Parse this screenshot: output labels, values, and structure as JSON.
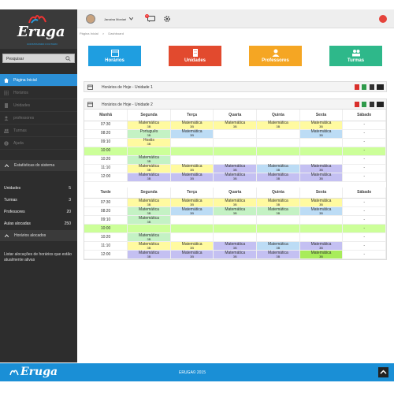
{
  "app": {
    "logo_text": "Eruga",
    "logo_sub": "CONSTRUINDO O FUTURO"
  },
  "sidebar": {
    "search_placeholder": "Pesquisar",
    "nav": [
      {
        "label": "Página Inicial",
        "icon": "home-icon",
        "active": true
      },
      {
        "label": "Horários",
        "icon": "grid-icon",
        "active": false
      },
      {
        "label": "Unidades",
        "icon": "building-icon",
        "active": false
      },
      {
        "label": "professores",
        "icon": "user-icon",
        "active": false
      },
      {
        "label": "Turmas",
        "icon": "group-icon",
        "active": false
      },
      {
        "label": "Ajuda",
        "icon": "info-icon",
        "active": false
      }
    ],
    "stats_title": "Estatísticas do sistema",
    "stats": [
      {
        "label": "Unidades",
        "value": "5"
      },
      {
        "label": "Turmas",
        "value": "3"
      },
      {
        "label": "Professores",
        "value": "20"
      },
      {
        "label": "Aulas alocadas",
        "value": "250"
      }
    ],
    "sched_title": "Horários alocados",
    "sched_text": "Listar alocações de horários que estão atualmente ativas"
  },
  "topbar": {
    "username": "Janaina Moniari",
    "msg_count": "3"
  },
  "breadcrumb": [
    "Página Inicial",
    ">",
    "Dashboard"
  ],
  "tiles": [
    {
      "label": "Horários",
      "color": "#1f9ee0",
      "icon": "calendar-icon"
    },
    {
      "label": "Unidades",
      "color": "#e24a2e",
      "icon": "building-icon"
    },
    {
      "label": "Professores",
      "color": "#f5a623",
      "icon": "user-icon"
    },
    {
      "label": "Turmas",
      "color": "#2eb88a",
      "icon": "group-icon"
    }
  ],
  "panels": {
    "unit1_title": "Horários de Hoje - Unidade 1",
    "unit2_title": "Horários de Hoje - Unidade 2"
  },
  "days": [
    "Segunda",
    "Terça",
    "Quarta",
    "Quinta",
    "Sexta",
    "Sábado"
  ],
  "morning": {
    "label": "Manhã",
    "rows": [
      {
        "time": "07:30",
        "cells": [
          [
            "Matemática",
            "3B",
            "yel"
          ],
          [
            "Matemática",
            "3B",
            "yel"
          ],
          [
            "Matemática",
            "3B",
            "yel"
          ],
          [
            "Matemática",
            "3B",
            "yel"
          ],
          [
            "Matemática",
            "3B",
            "yel"
          ],
          [
            "-",
            "",
            ""
          ]
        ]
      },
      {
        "time": "08:20",
        "cells": [
          [
            "Português",
            "3B",
            "grn"
          ],
          [
            "Matemática",
            "3B",
            "blu"
          ],
          [
            "",
            "",
            ""
          ],
          [
            "",
            "",
            ""
          ],
          [
            "Matemática",
            "3B",
            "blu"
          ],
          [
            "-",
            "",
            ""
          ]
        ]
      },
      {
        "time": "09:10",
        "cells": [
          [
            "Hostis",
            "3B",
            "yel"
          ],
          [
            "",
            "",
            ""
          ],
          [
            "",
            "",
            ""
          ],
          [
            "",
            "",
            ""
          ],
          [
            "",
            "",
            ""
          ],
          [
            "-",
            "",
            ""
          ]
        ]
      },
      {
        "time": "10:00",
        "break": true,
        "cells": [
          [
            "",
            "",
            ""
          ],
          [
            "",
            "",
            ""
          ],
          [
            "",
            "",
            ""
          ],
          [
            "",
            "",
            ""
          ],
          [
            "",
            "",
            ""
          ],
          [
            "-",
            "",
            ""
          ]
        ]
      },
      {
        "time": "10:20",
        "cells": [
          [
            "Matemática",
            "3B",
            "grn"
          ],
          [
            "",
            "",
            ""
          ],
          [
            "",
            "",
            ""
          ],
          [
            "",
            "",
            ""
          ],
          [
            "",
            "",
            ""
          ],
          [
            "-",
            "",
            ""
          ]
        ]
      },
      {
        "time": "11:10",
        "cells": [
          [
            "Matemática",
            "3B",
            "yel"
          ],
          [
            "Matemática",
            "3B",
            "yel"
          ],
          [
            "Matemática",
            "3B",
            "pur"
          ],
          [
            "Matemática",
            "3B",
            "blu"
          ],
          [
            "Matemática",
            "3B",
            "pur"
          ],
          [
            "-",
            "",
            ""
          ]
        ]
      },
      {
        "time": "12:00",
        "cells": [
          [
            "Matemática",
            "3B",
            "pur"
          ],
          [
            "Matemática",
            "3B",
            "pur"
          ],
          [
            "Matemática",
            "3B",
            "pur"
          ],
          [
            "Matemática",
            "3B",
            "pur"
          ],
          [
            "Matemática",
            "3B",
            "pur"
          ],
          [
            "-",
            "",
            ""
          ]
        ]
      }
    ]
  },
  "afternoon": {
    "label": "Tarde",
    "rows": [
      {
        "time": "07:30",
        "cells": [
          [
            "Matemática",
            "3B",
            "yel"
          ],
          [
            "Matemática",
            "3B",
            "yel"
          ],
          [
            "Matemática",
            "3B",
            "yel"
          ],
          [
            "Matemática",
            "3B",
            "yel"
          ],
          [
            "Matemática",
            "3B",
            "yel"
          ],
          [
            "-",
            "",
            ""
          ]
        ]
      },
      {
        "time": "08:20",
        "cells": [
          [
            "Matemática",
            "3B",
            "grn"
          ],
          [
            "Matemática",
            "3B",
            "blu"
          ],
          [
            "Matemática",
            "3B",
            "grn"
          ],
          [
            "Matemática",
            "3B",
            "grn"
          ],
          [
            "Matemática",
            "3B",
            "blu"
          ],
          [
            "-",
            "",
            ""
          ]
        ]
      },
      {
        "time": "09:10",
        "cells": [
          [
            "Matemática",
            "3B",
            "grn"
          ],
          [
            "",
            "",
            ""
          ],
          [
            "",
            "",
            ""
          ],
          [
            "",
            "",
            ""
          ],
          [
            "",
            "",
            ""
          ],
          [
            "-",
            "",
            ""
          ]
        ]
      },
      {
        "time": "10:00",
        "break": true,
        "cells": [
          [
            "",
            "",
            ""
          ],
          [
            "",
            "",
            ""
          ],
          [
            "",
            "",
            ""
          ],
          [
            "",
            "",
            ""
          ],
          [
            "",
            "",
            ""
          ],
          [
            "-",
            "",
            ""
          ]
        ]
      },
      {
        "time": "10:20",
        "cells": [
          [
            "Matemática",
            "3B",
            "grn"
          ],
          [
            "",
            "",
            ""
          ],
          [
            "",
            "",
            ""
          ],
          [
            "",
            "",
            ""
          ],
          [
            "",
            "",
            ""
          ],
          [
            "-",
            "",
            ""
          ]
        ]
      },
      {
        "time": "11:10",
        "cells": [
          [
            "Matemática",
            "3B",
            "yel"
          ],
          [
            "Matemática",
            "3B",
            "yel"
          ],
          [
            "Matemática",
            "3B",
            "pur"
          ],
          [
            "Matemática",
            "3B",
            "blu"
          ],
          [
            "Matemática",
            "3B",
            "pur"
          ],
          [
            "-",
            "",
            ""
          ]
        ]
      },
      {
        "time": "12:00",
        "cells": [
          [
            "Matemática",
            "3B",
            "pur"
          ],
          [
            "Matemática",
            "3B",
            "pur"
          ],
          [
            "Matemática",
            "3B",
            "pur"
          ],
          [
            "Matemática",
            "3B",
            "pur"
          ],
          [
            "Matemática",
            "3B",
            "lime"
          ],
          [
            "-",
            "",
            ""
          ]
        ]
      }
    ]
  },
  "footer": {
    "logo_text": "Eruga",
    "copyright": "ERUGA© 2015"
  }
}
